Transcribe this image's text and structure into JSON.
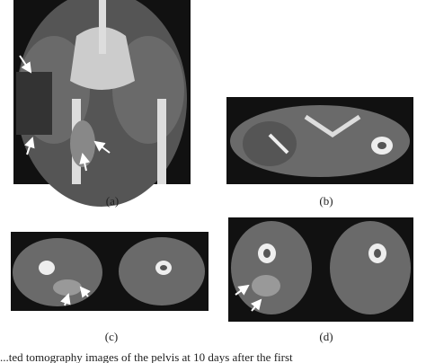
{
  "figure": {
    "panels": [
      {
        "label": "(a)"
      },
      {
        "label": "(b)"
      },
      {
        "label": "(c)"
      },
      {
        "label": "(d)"
      }
    ],
    "caption": "...ted tomography images of the pelvis at 10 days after the first"
  }
}
